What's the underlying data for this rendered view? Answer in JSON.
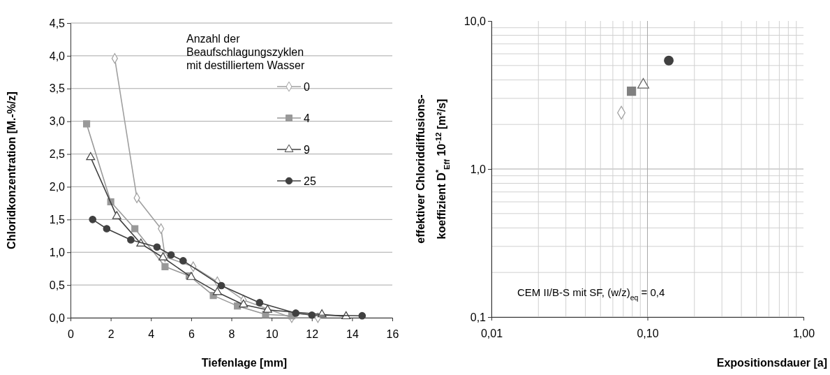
{
  "chart_data": [
    {
      "type": "line",
      "xlabel": "Tiefenlage [mm]",
      "ylabel": "Chloridkonzentration [M.-%/z]",
      "legend_title": "Anzahl der Beaufschlagungszyklen mit destilliertem Wasser",
      "legend": "top right",
      "grid": "y",
      "xlim": [
        0,
        16
      ],
      "xticks": [
        0,
        2,
        4,
        6,
        8,
        10,
        12,
        14,
        16
      ],
      "ylim": [
        0,
        4.5
      ],
      "yticks": [
        {
          "value": 0,
          "label": "0,0"
        },
        {
          "value": 0.5,
          "label": "0,5"
        },
        {
          "value": 1,
          "label": "1,0"
        },
        {
          "value": 1.5,
          "label": "1,5"
        },
        {
          "value": 2,
          "label": "2,0"
        },
        {
          "value": 2.5,
          "label": "2,5"
        },
        {
          "value": 3,
          "label": "3,0"
        },
        {
          "value": 3.5,
          "label": "3,5"
        },
        {
          "value": 4,
          "label": "4,0"
        },
        {
          "value": 4.5,
          "label": "4,5"
        }
      ],
      "series": [
        {
          "name": "0",
          "color": "#a0a0a0",
          "marker": "diamond",
          "x": [
            2.2,
            3.3,
            4.5,
            4.7,
            6.1,
            7.3,
            8.6,
            11.0,
            12.3
          ],
          "values": [
            3.96,
            1.83,
            1.36,
            0.93,
            0.78,
            0.55,
            0.27,
            0.0,
            0.0
          ]
        },
        {
          "name": "4",
          "color": "#999999",
          "marker": "square",
          "x": [
            0.8,
            2.0,
            3.2,
            4.7,
            5.9,
            7.1,
            8.3,
            9.7,
            11.0
          ],
          "values": [
            2.96,
            1.77,
            1.36,
            0.78,
            0.64,
            0.34,
            0.18,
            0.05,
            0.03
          ]
        },
        {
          "name": "9",
          "color": "#404040",
          "marker": "triangle",
          "x": [
            1.0,
            2.3,
            3.5,
            4.6,
            6.0,
            7.3,
            8.6,
            9.8,
            12.5,
            13.7
          ],
          "values": [
            2.45,
            1.55,
            1.13,
            0.92,
            0.62,
            0.39,
            0.2,
            0.12,
            0.05,
            0.02
          ]
        },
        {
          "name": "25",
          "color": "#404040",
          "marker": "circle",
          "x": [
            1.1,
            1.8,
            3.0,
            4.3,
            5.0,
            5.6,
            7.5,
            9.4,
            11.2,
            12.0,
            14.5
          ],
          "values": [
            1.5,
            1.36,
            1.19,
            1.08,
            0.96,
            0.87,
            0.49,
            0.23,
            0.07,
            0.04,
            0.03
          ]
        }
      ]
    },
    {
      "type": "scatter",
      "xlabel": "Expositionsdauer [a]",
      "ylabel": "effektiver Chloriddiffusions-\nkoeffizient D$^{*}$$_{Eff}$ 10$^{-12}$ [m²/s]",
      "annotations": [
        "CEM II/B-S mit SF, (w/z)$_{eq}$ = 0,4"
      ],
      "log": "xy",
      "grid": true,
      "xlim": [
        0.01,
        1
      ],
      "xticks": [
        {
          "value": 0.01,
          "label": "0,01"
        },
        {
          "value": 0.1,
          "label": "0,10"
        },
        {
          "value": 1,
          "label": "1,00"
        }
      ],
      "ylim": [
        0.1,
        10
      ],
      "yticks": [
        {
          "value": 0.1,
          "label": "0,1"
        },
        {
          "value": 1,
          "label": "1,0"
        },
        {
          "value": 10,
          "label": "10,0"
        }
      ],
      "series": [
        {
          "color": "#a0a0a0",
          "marker": "diamond",
          "x": [
            0.068
          ],
          "values": [
            2.4
          ]
        },
        {
          "color": "#808080",
          "marker": "square",
          "x": [
            0.079
          ],
          "values": [
            3.35
          ]
        },
        {
          "color": "#606060",
          "marker": "triangle",
          "x": [
            0.094
          ],
          "values": [
            3.7
          ]
        },
        {
          "color": "#404040",
          "marker": "circle",
          "x": [
            0.137
          ],
          "values": [
            5.4
          ]
        }
      ]
    }
  ]
}
